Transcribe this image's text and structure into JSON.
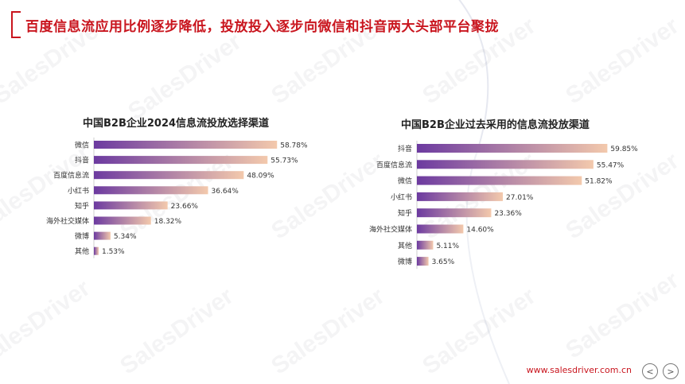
{
  "page": {
    "title": "百度信息流应用比例逐步降低，投放投入逐步向微信和抖音两大头部平台聚拢",
    "footer_url": "www.salesdriver.com.cn",
    "watermark": "SalesDriver",
    "accent_color": "#c9151e",
    "nav": {
      "prev_icon": "<",
      "next_icon": ">"
    }
  },
  "chart_data": [
    {
      "type": "bar",
      "orientation": "horizontal",
      "title": "中国B2B企业2024信息流投放选择渠道",
      "categories": [
        "微信",
        "抖音",
        "百度信息流",
        "小红书",
        "知乎",
        "海外社交媒体",
        "微博",
        "其他"
      ],
      "values": [
        58.78,
        55.73,
        48.09,
        36.64,
        23.66,
        18.32,
        5.34,
        1.53
      ],
      "labels": [
        "58.78%",
        "55.73%",
        "48.09%",
        "36.64%",
        "23.66%",
        "18.32%",
        "5.34%",
        "1.53%"
      ],
      "xlim": [
        0,
        60
      ],
      "gradient": [
        "#6c3aa0",
        "#f3c9ac"
      ]
    },
    {
      "type": "bar",
      "orientation": "horizontal",
      "title": "中国B2B企业过去采用的信息流投放渠道",
      "categories": [
        "抖音",
        "百度信息流",
        "微信",
        "小红书",
        "知乎",
        "海外社交媒体",
        "其他",
        "微博"
      ],
      "values": [
        59.85,
        55.47,
        51.82,
        27.01,
        23.36,
        14.6,
        5.11,
        3.65
      ],
      "labels": [
        "59.85%",
        "55.47%",
        "51.82%",
        "27.01%",
        "23.36%",
        "14.60%",
        "5.11%",
        "3.65%"
      ],
      "xlim": [
        0,
        60
      ],
      "gradient": [
        "#6c3aa0",
        "#f3c9ac"
      ]
    }
  ]
}
